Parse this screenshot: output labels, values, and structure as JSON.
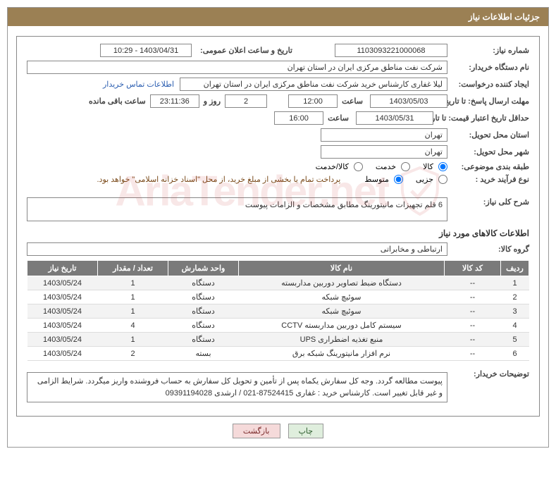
{
  "header": {
    "title": "جزئیات اطلاعات نیاز"
  },
  "fields": {
    "need_number_label": "شماره نیاز:",
    "need_number": "1103093221000068",
    "announce_label": "تاریخ و ساعت اعلان عمومی:",
    "announce_value": "1403/04/31 - 10:29",
    "buyer_org_label": "نام دستگاه خریدار:",
    "buyer_org": "شرکت نفت مناطق مرکزی ایران در استان تهران",
    "requester_label": "ایجاد کننده درخواست:",
    "requester": "لیلا غفاری کارشناس خرید شرکت نفت مناطق مرکزی ایران در استان تهران",
    "contact_link": "اطلاعات تماس خریدار",
    "deadline_send_label": "مهلت ارسال پاسخ: تا تاریخ:",
    "deadline_send_date": "1403/05/03",
    "time_label": "ساعت",
    "deadline_send_time": "12:00",
    "days_value": "2",
    "days_and": "روز و",
    "countdown": "23:11:36",
    "remaining": "ساعت باقی مانده",
    "validity_label": "حداقل تاریخ اعتبار قیمت: تا تاریخ:",
    "validity_date": "1403/05/31",
    "validity_time": "16:00",
    "province_label": "استان محل تحویل:",
    "province": "تهران",
    "city_label": "شهر محل تحویل:",
    "city": "تهران",
    "category_label": "طبقه بندی موضوعی:",
    "cat_goods": "کالا",
    "cat_service": "خدمت",
    "cat_both": "کالا/خدمت",
    "process_type_label": "نوع فرآیند خرید :",
    "proc_partial": "جزیی",
    "proc_medium": "متوسط",
    "treasury_note": "پرداخت تمام یا بخشی از مبلغ خرید، از محل \"اسناد خزانه اسلامی\" خواهد بود.",
    "summary_label": "شرح کلی نیاز:",
    "summary": "6 قلم تجهیزات مانیتورینگ مطابق مشخصات و الزامات پیوست",
    "goods_info_title": "اطلاعات کالاهای مورد نیاز",
    "goods_group_label": "گروه کالا:",
    "goods_group": "ارتباطی و مخابراتی",
    "buyer_notes_label": "توضیحات خریدار:",
    "buyer_notes": "پیوست مطالعه گردد. وجه کل سفارش یکماه پس از تأمین و تحویل کل سفارش به حساب فروشنده واریز میگردد. شرایط الزامی و غیر قابل تغییر است. کارشناس خرید : غفاری 87524415-021 / ارشدی 09391194028"
  },
  "table": {
    "headers": {
      "row": "ردیف",
      "code": "کد کالا",
      "name": "نام کالا",
      "unit": "واحد شمارش",
      "qty": "تعداد / مقدار",
      "date": "تاریخ نیاز"
    },
    "rows": [
      {
        "row": "1",
        "code": "--",
        "name": "دستگاه ضبط تصاویر دوربین مداربسته",
        "unit": "دستگاه",
        "qty": "1",
        "date": "1403/05/24"
      },
      {
        "row": "2",
        "code": "--",
        "name": "سوئیچ شبکه",
        "unit": "دستگاه",
        "qty": "1",
        "date": "1403/05/24"
      },
      {
        "row": "3",
        "code": "--",
        "name": "سوئیچ شبکه",
        "unit": "دستگاه",
        "qty": "1",
        "date": "1403/05/24"
      },
      {
        "row": "4",
        "code": "--",
        "name": "سیستم کامل دوربین مداربسته CCTV",
        "unit": "دستگاه",
        "qty": "4",
        "date": "1403/05/24"
      },
      {
        "row": "5",
        "code": "--",
        "name": "منبع تغذیه اضطراری UPS",
        "unit": "دستگاه",
        "qty": "1",
        "date": "1403/05/24"
      },
      {
        "row": "6",
        "code": "--",
        "name": "نرم افزار مانیتورینگ شبکه برق",
        "unit": "بسته",
        "qty": "2",
        "date": "1403/05/24"
      }
    ]
  },
  "buttons": {
    "print": "چاپ",
    "back": "بازگشت"
  },
  "watermark": {
    "text": "AriaTender.net"
  },
  "styling": {
    "header_bg": "#9b8054",
    "header_text": "#ffffff",
    "border_color": "#888888",
    "table_header_bg": "#7a7a7a",
    "link_color": "#2a5db0",
    "note_color": "#7a4a1a"
  }
}
